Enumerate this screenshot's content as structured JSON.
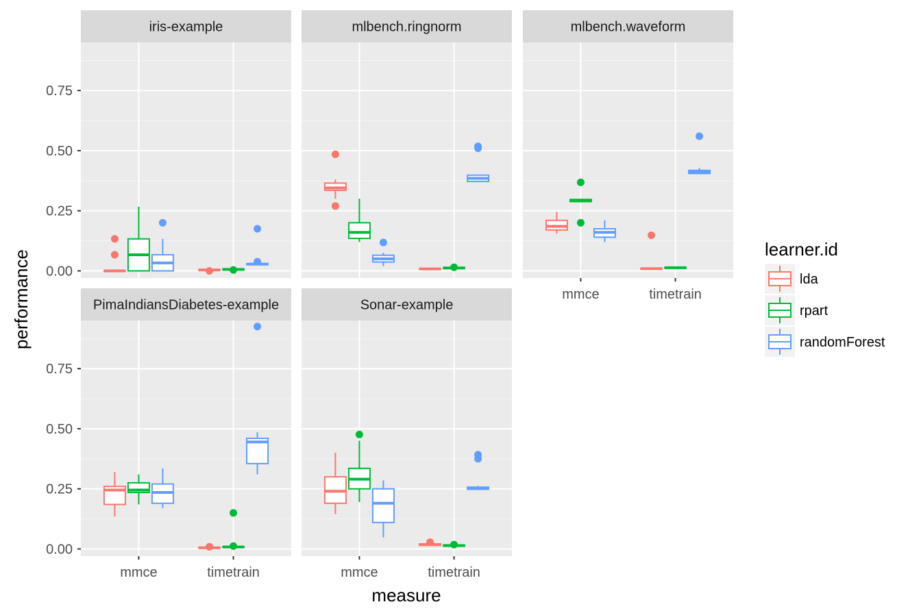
{
  "chart_data": {
    "type": "boxplot",
    "facet_layout": "wrap 3 columns",
    "y_label": "performance",
    "x_label": "measure",
    "x_categories": [
      "mmce",
      "timetrain"
    ],
    "y_ticks": [
      "0.00",
      "0.25",
      "0.50",
      "0.75"
    ],
    "y_tick_values": [
      0,
      0.25,
      0.5,
      0.75
    ],
    "y_range": [
      -0.03,
      0.95
    ],
    "grid": true,
    "legend": {
      "title": "learner.id",
      "position": "right",
      "items": [
        {
          "name": "lda",
          "color": "#F8766D"
        },
        {
          "name": "rpart",
          "color": "#00BA38"
        },
        {
          "name": "randomForest",
          "color": "#619CFF"
        }
      ]
    },
    "panels": [
      {
        "title": "iris-example",
        "boxes": [
          {
            "measure": "mmce",
            "learner": "lda",
            "min": 0,
            "q1": 0,
            "median": 0,
            "q3": 0,
            "max": 0,
            "outliers": [
              0.067,
              0.133
            ]
          },
          {
            "measure": "mmce",
            "learner": "rpart",
            "min": 0,
            "q1": 0,
            "median": 0.067,
            "q3": 0.133,
            "max": 0.267,
            "outliers": []
          },
          {
            "measure": "mmce",
            "learner": "randomForest",
            "min": 0,
            "q1": 0,
            "median": 0.033,
            "q3": 0.067,
            "max": 0.133,
            "outliers": [
              0.2
            ]
          },
          {
            "measure": "timetrain",
            "learner": "lda",
            "min": 0.002,
            "q1": 0.003,
            "median": 0.004,
            "q3": 0.005,
            "max": 0.006,
            "outliers": [
              0.0
            ]
          },
          {
            "measure": "timetrain",
            "learner": "rpart",
            "min": 0.004,
            "q1": 0.005,
            "median": 0.006,
            "q3": 0.007,
            "max": 0.008,
            "outliers": [
              0.004
            ]
          },
          {
            "measure": "timetrain",
            "learner": "randomForest",
            "min": 0.025,
            "q1": 0.026,
            "median": 0.028,
            "q3": 0.03,
            "max": 0.032,
            "outliers": [
              0.038,
              0.175
            ]
          }
        ]
      },
      {
        "title": "mlbench.ringnorm",
        "boxes": [
          {
            "measure": "mmce",
            "learner": "lda",
            "min": 0.3,
            "q1": 0.335,
            "median": 0.345,
            "q3": 0.365,
            "max": 0.38,
            "outliers": [
              0.27,
              0.485
            ]
          },
          {
            "measure": "mmce",
            "learner": "rpart",
            "min": 0.12,
            "q1": 0.135,
            "median": 0.16,
            "q3": 0.2,
            "max": 0.3,
            "outliers": []
          },
          {
            "measure": "mmce",
            "learner": "randomForest",
            "min": 0.02,
            "q1": 0.037,
            "median": 0.05,
            "q3": 0.065,
            "max": 0.075,
            "outliers": [
              0.118
            ]
          },
          {
            "measure": "timetrain",
            "learner": "lda",
            "min": 0.005,
            "q1": 0.007,
            "median": 0.008,
            "q3": 0.009,
            "max": 0.01,
            "outliers": []
          },
          {
            "measure": "timetrain",
            "learner": "rpart",
            "min": 0.009,
            "q1": 0.011,
            "median": 0.012,
            "q3": 0.014,
            "max": 0.016,
            "outliers": [
              0.015
            ]
          },
          {
            "measure": "timetrain",
            "learner": "randomForest",
            "min": 0.37,
            "q1": 0.372,
            "median": 0.385,
            "q3": 0.398,
            "max": 0.4,
            "outliers": [
              0.51,
              0.518
            ]
          }
        ]
      },
      {
        "title": "mlbench.waveform",
        "boxes": [
          {
            "measure": "mmce",
            "learner": "lda",
            "min": 0.155,
            "q1": 0.17,
            "median": 0.185,
            "q3": 0.21,
            "max": 0.245,
            "outliers": []
          },
          {
            "measure": "mmce",
            "learner": "rpart",
            "min": 0.285,
            "q1": 0.288,
            "median": 0.292,
            "q3": 0.297,
            "max": 0.3,
            "outliers": [
              0.2,
              0.368
            ]
          },
          {
            "measure": "mmce",
            "learner": "randomForest",
            "min": 0.12,
            "q1": 0.14,
            "median": 0.16,
            "q3": 0.175,
            "max": 0.21,
            "outliers": []
          },
          {
            "measure": "timetrain",
            "learner": "lda",
            "min": 0.007,
            "q1": 0.008,
            "median": 0.009,
            "q3": 0.01,
            "max": 0.011,
            "outliers": [
              0.148
            ]
          },
          {
            "measure": "timetrain",
            "learner": "rpart",
            "min": 0.011,
            "q1": 0.012,
            "median": 0.013,
            "q3": 0.014,
            "max": 0.015,
            "outliers": []
          },
          {
            "measure": "timetrain",
            "learner": "randomForest",
            "min": 0.402,
            "q1": 0.405,
            "median": 0.41,
            "q3": 0.418,
            "max": 0.428,
            "outliers": [
              0.56
            ]
          }
        ]
      },
      {
        "title": "PimaIndiansDiabetes-example",
        "boxes": [
          {
            "measure": "mmce",
            "learner": "lda",
            "min": 0.135,
            "q1": 0.185,
            "median": 0.245,
            "q3": 0.26,
            "max": 0.32,
            "outliers": []
          },
          {
            "measure": "mmce",
            "learner": "rpart",
            "min": 0.185,
            "q1": 0.235,
            "median": 0.245,
            "q3": 0.275,
            "max": 0.31,
            "outliers": []
          },
          {
            "measure": "mmce",
            "learner": "randomForest",
            "min": 0.17,
            "q1": 0.19,
            "median": 0.235,
            "q3": 0.27,
            "max": 0.335,
            "outliers": []
          },
          {
            "measure": "timetrain",
            "learner": "lda",
            "min": 0.003,
            "q1": 0.004,
            "median": 0.005,
            "q3": 0.007,
            "max": 0.009,
            "outliers": [
              0.009
            ]
          },
          {
            "measure": "timetrain",
            "learner": "rpart",
            "min": 0.006,
            "q1": 0.007,
            "median": 0.008,
            "q3": 0.009,
            "max": 0.011,
            "outliers": [
              0.012,
              0.15
            ]
          },
          {
            "measure": "timetrain",
            "learner": "randomForest",
            "min": 0.31,
            "q1": 0.355,
            "median": 0.445,
            "q3": 0.46,
            "max": 0.485,
            "outliers": [
              0.925
            ]
          }
        ]
      },
      {
        "title": "Sonar-example",
        "boxes": [
          {
            "measure": "mmce",
            "learner": "lda",
            "min": 0.145,
            "q1": 0.19,
            "median": 0.24,
            "q3": 0.3,
            "max": 0.4,
            "outliers": []
          },
          {
            "measure": "mmce",
            "learner": "rpart",
            "min": 0.195,
            "q1": 0.25,
            "median": 0.29,
            "q3": 0.335,
            "max": 0.45,
            "outliers": [
              0.476
            ]
          },
          {
            "measure": "mmce",
            "learner": "randomForest",
            "min": 0.048,
            "q1": 0.11,
            "median": 0.19,
            "q3": 0.25,
            "max": 0.285,
            "outliers": []
          },
          {
            "measure": "timetrain",
            "learner": "lda",
            "min": 0.013,
            "q1": 0.015,
            "median": 0.018,
            "q3": 0.021,
            "max": 0.024,
            "outliers": [
              0.028
            ]
          },
          {
            "measure": "timetrain",
            "learner": "rpart",
            "min": 0.011,
            "q1": 0.012,
            "median": 0.014,
            "q3": 0.016,
            "max": 0.018,
            "outliers": [
              0.018
            ]
          },
          {
            "measure": "timetrain",
            "learner": "randomForest",
            "min": 0.245,
            "q1": 0.248,
            "median": 0.252,
            "q3": 0.257,
            "max": 0.262,
            "outliers": [
              0.375,
              0.392
            ]
          }
        ]
      }
    ]
  }
}
